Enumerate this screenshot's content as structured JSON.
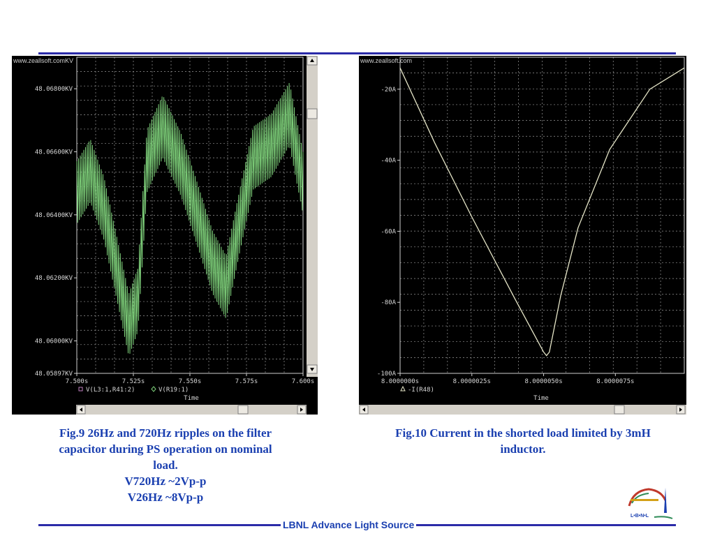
{
  "fig9": {
    "watermark": "www.zeallsoft.comKV",
    "caption_lines": [
      "Fig.9  26Hz and 720Hz ripples on the filter",
      "capacitor during PS operation on nominal",
      "load.",
      "V720Hz ~2Vp-p",
      "V26Hz ~8Vp-p"
    ]
  },
  "fig10": {
    "watermark": "www.zeallsoft.com",
    "caption_lines": [
      "Fig.10  Current in the shorted load limited by 3mH",
      "inductor."
    ]
  },
  "footer": {
    "text": "LBNL Advance Light Source",
    "logo_text": "L•B•N•L"
  },
  "colors": {
    "rule": "#2b2ba8",
    "caption": "#1a3fb0",
    "trace9": "#7ed07a",
    "trace10": "#e6e6c8"
  },
  "chart_data": [
    {
      "type": "line",
      "title": "",
      "xlabel": "Time",
      "ylabel": "",
      "xlim": [
        7.5,
        7.6
      ],
      "ylim": [
        48.05897,
        48.069
      ],
      "x_tick_labels": [
        "7.500s",
        "7.525s",
        "7.550s",
        "7.575s",
        "7.600s"
      ],
      "x_ticks": [
        7.5,
        7.525,
        7.55,
        7.575,
        7.6
      ],
      "y_tick_labels": [
        "48.06800KV",
        "48.06600KV",
        "48.06400KV",
        "48.06200KV",
        "48.06000KV",
        "48.05897KV"
      ],
      "y_ticks": [
        48.068,
        48.066,
        48.064,
        48.062,
        48.06,
        48.05897
      ],
      "legend": [
        "V(L3:1,R41:2)",
        "V(R19:1)"
      ],
      "series": [
        {
          "name": "V(R19:1)",
          "ripple_pp": 0.002,
          "x": [
            7.5,
            7.506,
            7.512,
            7.518,
            7.523,
            7.527,
            7.531,
            7.538,
            7.546,
            7.552,
            7.56,
            7.566,
            7.572,
            7.578,
            7.586,
            7.594,
            7.6
          ],
          "y": [
            48.0647,
            48.0654,
            48.0642,
            48.0622,
            48.0605,
            48.0613,
            48.0657,
            48.0668,
            48.0656,
            48.0643,
            48.0625,
            48.0617,
            48.0638,
            48.0658,
            48.0662,
            48.0672,
            48.065
          ]
        }
      ],
      "grid": true
    },
    {
      "type": "line",
      "title": "",
      "xlabel": "Time",
      "ylabel": "",
      "xlim": [
        8.0,
        8.0000099
      ],
      "ylim": [
        -100,
        -11
      ],
      "x_tick_labels": [
        "8.0000000s",
        "8.0000025s",
        "8.0000050s",
        "8.0000075s"
      ],
      "x_ticks": [
        8.0,
        8.0000025,
        8.000005,
        8.0000075
      ],
      "y_tick_labels": [
        "-20A",
        "-40A",
        "-60A",
        "-80A",
        "-100A"
      ],
      "y_ticks": [
        -20,
        -40,
        -60,
        -80,
        -100
      ],
      "legend": [
        "-I(R48)"
      ],
      "series": [
        {
          "name": "-I(R48)",
          "x": [
            8.0,
            8.0000012,
            8.0000025,
            8.000004,
            8.000005,
            8.0000051,
            8.0000052,
            8.0000056,
            8.0000062,
            8.0000073,
            8.0000087,
            8.0000099
          ],
          "y": [
            -14,
            -35,
            -56,
            -79,
            -94,
            -95,
            -94,
            -78,
            -59,
            -37,
            -20,
            -14
          ]
        }
      ],
      "grid": true
    }
  ]
}
